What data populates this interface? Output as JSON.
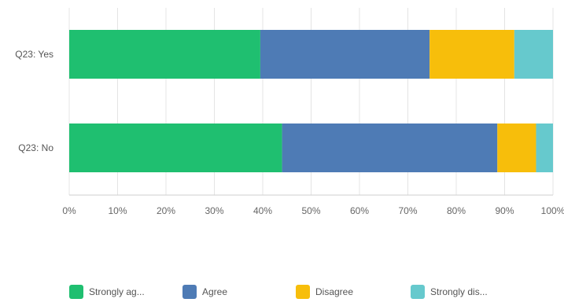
{
  "chart_data": {
    "type": "bar",
    "orientation": "horizontal",
    "stacked": true,
    "categories": [
      "Q23: Yes",
      "Q23: No"
    ],
    "series": [
      {
        "name": "Strongly ag...",
        "color": "#1fbf70",
        "values": [
          39.5,
          44
        ]
      },
      {
        "name": "Agree",
        "color": "#4e7bb5",
        "values": [
          35,
          44.5
        ]
      },
      {
        "name": "Disagree",
        "color": "#f7be0b",
        "values": [
          17.5,
          8
        ]
      },
      {
        "name": "Strongly dis...",
        "color": "#66c9cd",
        "values": [
          8,
          3.5
        ]
      }
    ],
    "xlim": [
      0,
      100
    ],
    "x_ticks": [
      "0%",
      "10%",
      "20%",
      "30%",
      "40%",
      "50%",
      "60%",
      "70%",
      "80%",
      "90%",
      "100%"
    ],
    "grid": true,
    "legend_position": "bottom"
  }
}
